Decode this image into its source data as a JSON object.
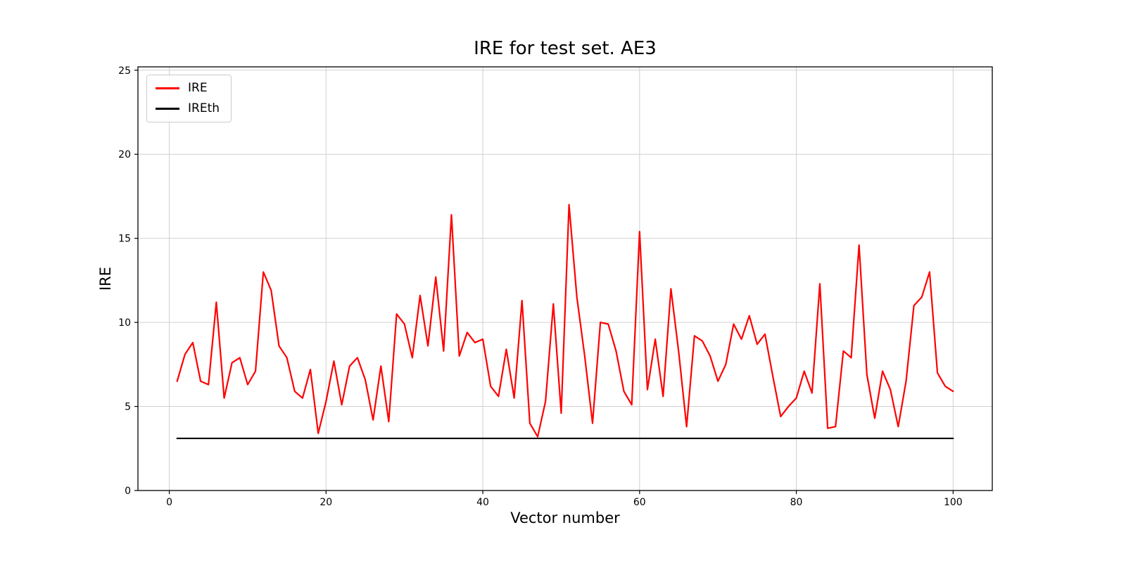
{
  "figure": {
    "title": "IRE for test set. AE3",
    "xlabel": "Vector number",
    "ylabel": "IRE"
  },
  "legend": {
    "items": [
      {
        "label": "IRE",
        "color": "#ff0000"
      },
      {
        "label": "IREth",
        "color": "#000000"
      }
    ]
  },
  "chart_data": {
    "type": "line",
    "title": "IRE for test set. AE3",
    "xlabel": "Vector number",
    "ylabel": "IRE",
    "xlim": [
      -4,
      105
    ],
    "ylim": [
      0,
      25.2
    ],
    "xticks": [
      0,
      20,
      40,
      60,
      80,
      100
    ],
    "yticks": [
      0,
      5,
      10,
      15,
      20,
      25
    ],
    "grid": true,
    "grid_color": "#d0d0d0",
    "legend_position": "upper left",
    "series": [
      {
        "name": "IRE",
        "color": "#ff0000",
        "x": [
          1,
          2,
          3,
          4,
          5,
          6,
          7,
          8,
          9,
          10,
          11,
          12,
          13,
          14,
          15,
          16,
          17,
          18,
          19,
          20,
          21,
          22,
          23,
          24,
          25,
          26,
          27,
          28,
          29,
          30,
          31,
          32,
          33,
          34,
          35,
          36,
          37,
          38,
          39,
          40,
          41,
          42,
          43,
          44,
          45,
          46,
          47,
          48,
          49,
          50,
          51,
          52,
          53,
          54,
          55,
          56,
          57,
          58,
          59,
          60,
          61,
          62,
          63,
          64,
          65,
          66,
          67,
          68,
          69,
          70,
          71,
          72,
          73,
          74,
          75,
          76,
          77,
          78,
          79,
          80,
          81,
          82,
          83,
          84,
          85,
          86,
          87,
          88,
          89,
          90,
          91,
          92,
          93,
          94,
          95,
          96,
          97,
          98,
          99,
          100
        ],
        "y": [
          6.5,
          8.1,
          8.8,
          6.5,
          6.3,
          11.2,
          5.5,
          7.6,
          7.9,
          6.3,
          7.1,
          13.0,
          11.9,
          8.6,
          7.9,
          5.9,
          5.5,
          7.2,
          3.4,
          5.3,
          7.7,
          5.1,
          7.4,
          7.9,
          6.6,
          4.2,
          7.4,
          4.1,
          10.5,
          9.9,
          7.9,
          11.6,
          8.6,
          12.7,
          8.3,
          16.4,
          8.0,
          9.4,
          8.8,
          9.0,
          6.2,
          5.6,
          8.4,
          5.5,
          11.3,
          4.0,
          3.2,
          5.3,
          11.1,
          4.6,
          17.0,
          11.5,
          8.0,
          4.0,
          10.0,
          9.9,
          8.3,
          5.9,
          5.1,
          15.4,
          6.0,
          9.0,
          5.6,
          12.0,
          8.2,
          3.8,
          9.2,
          8.9,
          8.0,
          6.5,
          7.5,
          9.9,
          9.0,
          10.4,
          8.7,
          9.3,
          6.8,
          4.4,
          5.0,
          5.5,
          7.1,
          5.8,
          12.3,
          3.7,
          3.8,
          8.3,
          7.9,
          14.6,
          6.9,
          4.3,
          7.1,
          6.0,
          3.8,
          6.5,
          11.0,
          11.5,
          13.0,
          7.0,
          6.2,
          5.9
        ]
      },
      {
        "name": "IREth",
        "color": "#000000",
        "x": [
          1,
          100
        ],
        "y": [
          3.1,
          3.1
        ]
      }
    ]
  }
}
